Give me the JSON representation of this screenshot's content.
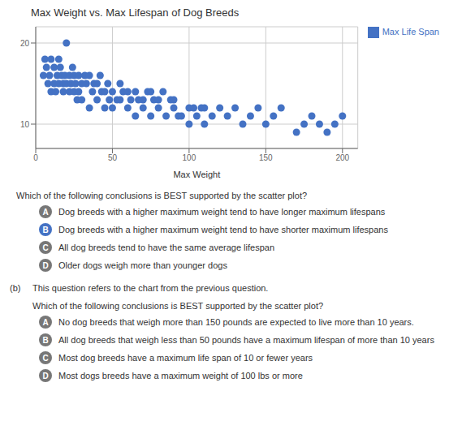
{
  "chart_data": {
    "type": "scatter",
    "title": "Max Weight vs. Max Lifespan of Dog Breeds",
    "x_label": "Max Weight",
    "xlim": [
      0,
      210
    ],
    "ylim": [
      7,
      22
    ],
    "xticks": [
      0,
      50,
      100,
      150,
      200
    ],
    "yticks": [
      10,
      20
    ],
    "grid": true,
    "legend": "upper right",
    "x": [
      5,
      6,
      7,
      8,
      9,
      10,
      10,
      12,
      12,
      13,
      14,
      15,
      15,
      16,
      17,
      18,
      18,
      19,
      20,
      20,
      22,
      22,
      23,
      24,
      25,
      25,
      26,
      27,
      28,
      28,
      30,
      30,
      32,
      33,
      35,
      35,
      37,
      38,
      40,
      40,
      42,
      43,
      45,
      45,
      47,
      48,
      50,
      50,
      53,
      55,
      55,
      57,
      60,
      60,
      62,
      65,
      65,
      67,
      70,
      70,
      73,
      75,
      75,
      77,
      80,
      80,
      83,
      85,
      88,
      90,
      90,
      93,
      95,
      100,
      100,
      103,
      105,
      108,
      110,
      110,
      115,
      120,
      125,
      130,
      135,
      140,
      145,
      150,
      155,
      160,
      170,
      175,
      180,
      185,
      190,
      195,
      200
    ],
    "series": [
      {
        "name": "Max Life Span",
        "color": "#4472C4",
        "values": [
          16,
          18,
          17,
          15,
          16,
          18,
          14,
          17,
          15,
          14,
          16,
          18,
          15,
          17,
          16,
          15,
          14,
          16,
          20,
          15,
          16,
          14,
          15,
          17,
          16,
          14,
          15,
          13,
          16,
          14,
          15,
          13,
          16,
          15,
          16,
          12,
          14,
          15,
          15,
          13,
          16,
          14,
          14,
          12,
          15,
          13,
          14,
          12,
          13,
          15,
          13,
          14,
          14,
          12,
          13,
          14,
          11,
          13,
          13,
          12,
          14,
          14,
          11,
          13,
          13,
          12,
          14,
          11,
          13,
          13,
          12,
          11,
          11,
          12,
          10,
          12,
          11,
          12,
          12,
          10,
          11,
          12,
          11,
          12,
          10,
          11,
          12,
          10,
          11,
          12,
          9,
          10,
          11,
          10,
          9,
          10,
          11
        ]
      }
    ],
    "annotations": [
      {
        "text": "Which of the following conclusions is BEST supported by the scatter plot?"
      },
      {
        "label": "A",
        "text": "Dog breeds with a higher maximum weight tend to have longer maximum lifespans",
        "color": "#777777"
      },
      {
        "label": "B",
        "text": "Dog breeds with a higher maximum weight tend to have shorter maximum lifespans",
        "color": "#4472C4"
      },
      {
        "label": "C",
        "text": "All dog breeds tend to have the same average lifespan",
        "color": "#777777"
      },
      {
        "label": "D",
        "text": "Older dogs weigh more than younger dogs",
        "color": "#777777"
      },
      {
        "label": "(b)",
        "text": "This question refers to the chart from the previous question."
      },
      {
        "text": "Which of the following conclusions is BEST supported by the scatter plot?"
      },
      {
        "label": "A",
        "text": "No dog breeds that weigh more than 150 pounds are expected to live more than 10 years.",
        "color": "#777777"
      },
      {
        "label": "B",
        "text": "All dog breeds that weigh less than 50 pounds have a maximum lifespan of more than 10 years",
        "color": "#777777"
      },
      {
        "label": "C",
        "text": "Most dog breeds have a maximum life span of 10 or fewer years",
        "color": "#777777"
      },
      {
        "label": "D",
        "text": "Most dogs breeds have a maximum weight of 100 lbs or more",
        "color": "#777777"
      }
    ]
  }
}
